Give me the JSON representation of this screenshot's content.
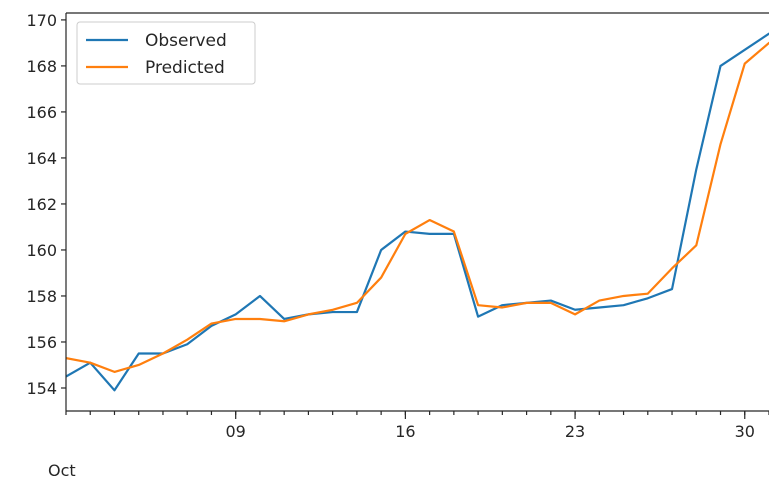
{
  "chart_data": {
    "type": "line",
    "title": "",
    "xlabel": "",
    "ylabel": "",
    "x_axis_sublabel": "Oct",
    "x_tick_labels": [
      "09",
      "16",
      "23",
      "30"
    ],
    "x_tick_days": [
      9,
      16,
      23,
      30
    ],
    "x": [
      2,
      3,
      4,
      5,
      6,
      7,
      8,
      9,
      10,
      11,
      12,
      13,
      14,
      15,
      16,
      17,
      18,
      19,
      20,
      21,
      22,
      23,
      24,
      25,
      26,
      27,
      28,
      29,
      30,
      31
    ],
    "xlim": [
      2,
      31
    ],
    "ylim": [
      153.0,
      170.3
    ],
    "yticks": [
      154,
      156,
      158,
      160,
      162,
      164,
      166,
      168,
      170
    ],
    "grid": false,
    "legend": "top-left",
    "series": [
      {
        "name": "Observed",
        "color": "#1f77b4",
        "values": [
          154.5,
          155.1,
          153.9,
          155.5,
          155.5,
          155.9,
          156.7,
          157.2,
          158.0,
          157.0,
          157.2,
          157.3,
          157.3,
          160.0,
          160.8,
          160.7,
          160.7,
          157.1,
          157.6,
          157.7,
          157.8,
          157.4,
          157.5,
          157.6,
          157.9,
          158.3,
          163.5,
          168.0,
          168.7,
          169.4
        ]
      },
      {
        "name": "Predicted",
        "color": "#ff7f0e",
        "values": [
          155.3,
          155.1,
          154.7,
          155.0,
          155.5,
          156.1,
          156.8,
          157.0,
          157.0,
          156.9,
          157.2,
          157.4,
          157.7,
          158.8,
          160.7,
          161.3,
          160.8,
          157.6,
          157.5,
          157.7,
          157.7,
          157.2,
          157.8,
          158.0,
          158.1,
          159.2,
          160.2,
          164.6,
          168.1,
          169.0
        ]
      }
    ]
  }
}
